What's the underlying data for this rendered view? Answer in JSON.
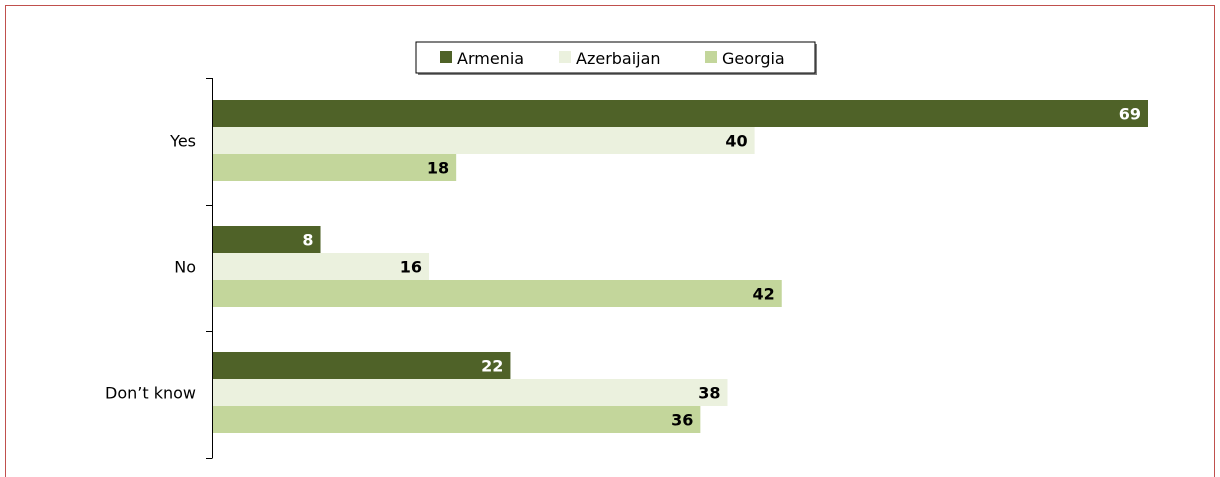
{
  "chart_data": {
    "type": "bar",
    "orientation": "horizontal",
    "categories": [
      "Yes",
      "No",
      "Don’t know"
    ],
    "series": [
      {
        "name": "Armenia",
        "values": [
          69,
          8,
          22
        ],
        "color": "#4f6228",
        "label_color": "#ffffff"
      },
      {
        "name": "Azerbaijan",
        "values": [
          40,
          16,
          38
        ],
        "color": "#ebf1de",
        "label_color": "#000000"
      },
      {
        "name": "Georgia",
        "values": [
          18,
          42,
          36
        ],
        "color": "#c3d69b",
        "label_color": "#000000"
      }
    ],
    "xlim": [
      0,
      70
    ],
    "legend_position": "top",
    "grid": false,
    "show_x_axis": false,
    "border_color": "#c0504d"
  }
}
